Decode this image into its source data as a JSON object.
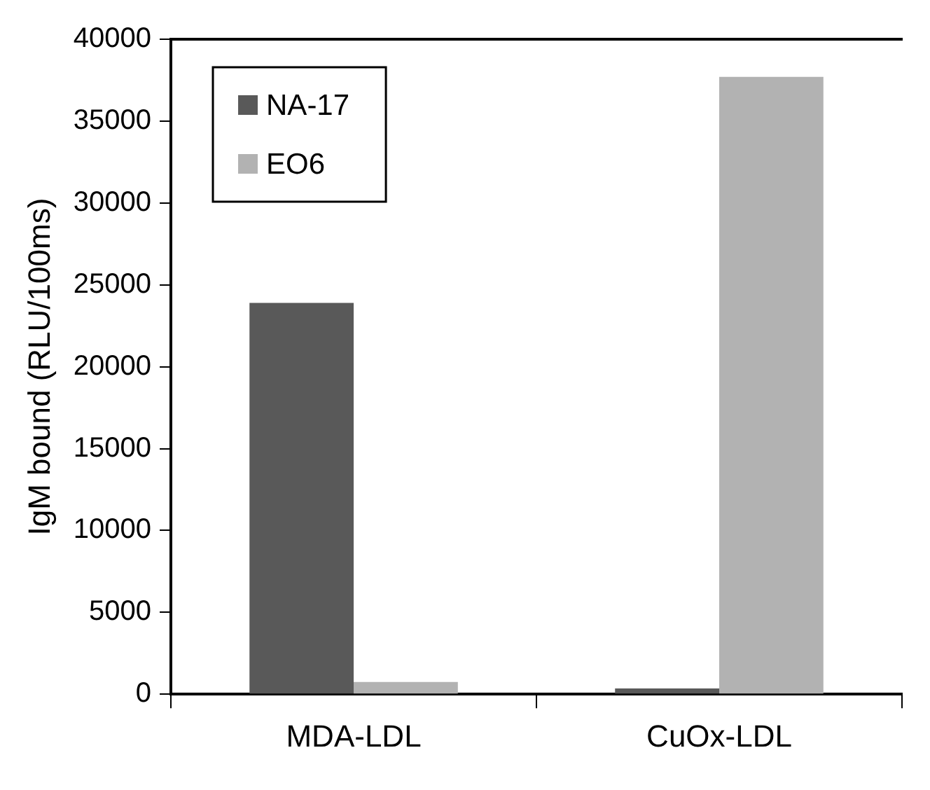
{
  "chart_data": {
    "type": "bar",
    "ylabel": "IgM bound (RLU/100ms)",
    "categories": [
      "MDA-LDL",
      "CuOx-LDL"
    ],
    "series": [
      {
        "name": "NA-17",
        "color": "#595959",
        "values": [
          23900,
          350
        ]
      },
      {
        "name": "EO6",
        "color": "#b2b2b2",
        "values": [
          750,
          37700
        ]
      }
    ],
    "ylim": [
      0,
      40000
    ],
    "yticks": [
      0,
      5000,
      10000,
      15000,
      20000,
      25000,
      30000,
      35000,
      40000
    ],
    "grid": false,
    "legend": "top left"
  }
}
